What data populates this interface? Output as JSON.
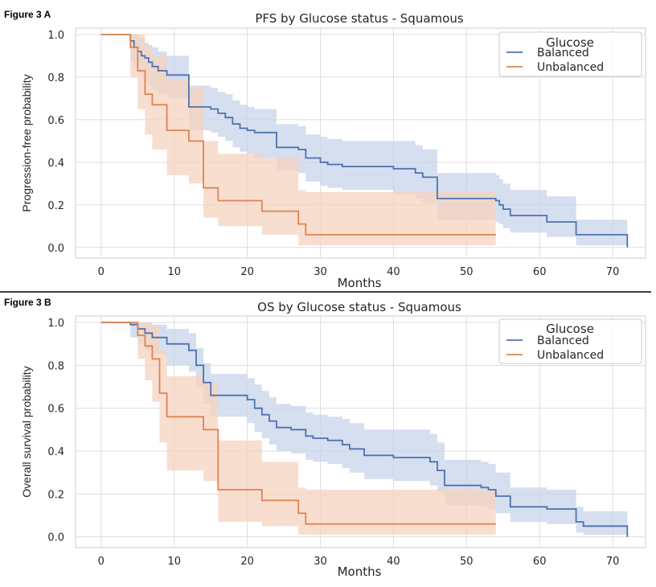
{
  "chart_data": [
    {
      "type": "line",
      "figure_label": "Figure 3 A",
      "title": "PFS by Glucose status - Squamous",
      "xlabel": "Months",
      "ylabel": "Progression-free probability",
      "xlim": [
        -3.5,
        74.5
      ],
      "ylim": [
        -0.05,
        1.03
      ],
      "xticks": [
        0,
        10,
        20,
        30,
        40,
        50,
        60,
        70
      ],
      "xtick_labels": [
        "0",
        "10",
        "20",
        "30",
        "40",
        "50",
        "60",
        "70"
      ],
      "yticks": [
        0.0,
        0.2,
        0.4,
        0.6,
        0.8,
        1.0
      ],
      "ytick_labels": [
        "0.0",
        "0.2",
        "0.4",
        "0.6",
        "0.8",
        "1.0"
      ],
      "grid": true,
      "legend": {
        "title": "Glucose",
        "position": "top-right"
      },
      "series": [
        {
          "name": "Balanced",
          "color": "#4c72b0",
          "band": "#c8d4ea",
          "x": [
            0,
            4,
            4.5,
            5,
            5.5,
            6,
            6.5,
            7,
            7.8,
            9,
            10.5,
            12,
            14,
            15,
            16,
            17,
            18,
            19,
            20,
            21,
            23,
            24,
            26,
            27,
            28,
            30,
            31,
            33,
            36,
            40,
            43,
            44,
            46,
            47,
            54,
            54.5,
            55,
            56,
            58,
            61,
            65,
            72
          ],
          "y": [
            1.0,
            0.97,
            0.94,
            0.92,
            0.9,
            0.89,
            0.87,
            0.85,
            0.83,
            0.81,
            0.81,
            0.66,
            0.66,
            0.65,
            0.63,
            0.61,
            0.58,
            0.56,
            0.55,
            0.54,
            0.54,
            0.47,
            0.47,
            0.46,
            0.42,
            0.4,
            0.39,
            0.38,
            0.38,
            0.37,
            0.35,
            0.33,
            0.23,
            0.23,
            0.22,
            0.2,
            0.18,
            0.15,
            0.15,
            0.12,
            0.06,
            0.0
          ],
          "upper": [
            1.0,
            1.0,
            1.0,
            0.99,
            0.98,
            0.96,
            0.95,
            0.94,
            0.92,
            0.9,
            0.9,
            0.76,
            0.76,
            0.75,
            0.73,
            0.72,
            0.69,
            0.67,
            0.66,
            0.65,
            0.65,
            0.58,
            0.58,
            0.57,
            0.53,
            0.52,
            0.51,
            0.5,
            0.5,
            0.5,
            0.48,
            0.46,
            0.35,
            0.35,
            0.34,
            0.32,
            0.3,
            0.27,
            0.27,
            0.24,
            0.13,
            0.13
          ],
          "lower": [
            1.0,
            0.87,
            0.85,
            0.82,
            0.8,
            0.78,
            0.76,
            0.74,
            0.72,
            0.7,
            0.7,
            0.55,
            0.55,
            0.54,
            0.52,
            0.5,
            0.47,
            0.45,
            0.44,
            0.42,
            0.42,
            0.36,
            0.36,
            0.35,
            0.31,
            0.29,
            0.28,
            0.27,
            0.27,
            0.25,
            0.23,
            0.21,
            0.13,
            0.13,
            0.12,
            0.11,
            0.09,
            0.07,
            0.07,
            0.05,
            0.01,
            0.0
          ]
        },
        {
          "name": "Unbalanced",
          "color": "#dd8452",
          "band": "#f5d3bf",
          "x": [
            0,
            4,
            5,
            6,
            7,
            9,
            12,
            14,
            16,
            22,
            27,
            28,
            54
          ],
          "y": [
            1.0,
            0.94,
            0.83,
            0.72,
            0.67,
            0.55,
            0.5,
            0.28,
            0.22,
            0.17,
            0.11,
            0.06,
            0.06
          ],
          "upper": [
            1.0,
            1.0,
            1.0,
            0.95,
            0.9,
            0.79,
            0.75,
            0.5,
            0.44,
            0.42,
            0.27,
            0.26,
            0.26
          ],
          "lower": [
            1.0,
            0.8,
            0.65,
            0.53,
            0.46,
            0.34,
            0.3,
            0.14,
            0.1,
            0.06,
            0.01,
            0.01,
            0.01
          ]
        }
      ]
    },
    {
      "type": "line",
      "figure_label": "Figure 3 B",
      "title": "OS by Glucose status - Squamous",
      "xlabel": "Months",
      "ylabel": "Overall survival probability",
      "xlim": [
        -3.5,
        74.5
      ],
      "ylim": [
        -0.05,
        1.03
      ],
      "xticks": [
        0,
        10,
        20,
        30,
        40,
        50,
        60,
        70
      ],
      "xtick_labels": [
        "0",
        "10",
        "20",
        "30",
        "40",
        "50",
        "60",
        "70"
      ],
      "yticks": [
        0.0,
        0.2,
        0.4,
        0.6,
        0.8,
        1.0
      ],
      "ytick_labels": [
        "0.0",
        "0.2",
        "0.4",
        "0.6",
        "0.8",
        "1.0"
      ],
      "grid": true,
      "legend": {
        "title": "Glucose",
        "position": "top-right"
      },
      "series": [
        {
          "name": "Balanced",
          "color": "#4c72b0",
          "band": "#c8d4ea",
          "x": [
            0,
            4,
            5,
            6,
            7,
            9,
            12,
            13,
            14,
            15,
            19,
            20,
            21,
            22,
            23,
            24,
            26,
            28,
            29,
            31,
            33,
            34,
            36,
            38,
            40,
            44,
            45,
            46,
            47,
            50,
            52,
            53,
            54,
            56,
            58,
            61,
            65,
            66,
            67,
            72
          ],
          "y": [
            1.0,
            0.99,
            0.97,
            0.95,
            0.93,
            0.9,
            0.87,
            0.8,
            0.72,
            0.66,
            0.66,
            0.64,
            0.6,
            0.57,
            0.54,
            0.51,
            0.5,
            0.47,
            0.46,
            0.45,
            0.43,
            0.41,
            0.38,
            0.38,
            0.37,
            0.37,
            0.35,
            0.31,
            0.24,
            0.24,
            0.23,
            0.22,
            0.19,
            0.14,
            0.14,
            0.13,
            0.07,
            0.05,
            0.05,
            0.0
          ],
          "upper": [
            1.0,
            1.0,
            1.0,
            1.0,
            0.99,
            0.97,
            0.95,
            0.88,
            0.81,
            0.76,
            0.76,
            0.74,
            0.71,
            0.68,
            0.65,
            0.62,
            0.61,
            0.58,
            0.57,
            0.56,
            0.55,
            0.53,
            0.5,
            0.5,
            0.5,
            0.5,
            0.48,
            0.44,
            0.36,
            0.36,
            0.35,
            0.34,
            0.3,
            0.23,
            0.23,
            0.22,
            0.14,
            0.12,
            0.12,
            0.12
          ],
          "lower": [
            1.0,
            0.93,
            0.9,
            0.87,
            0.85,
            0.8,
            0.77,
            0.7,
            0.62,
            0.56,
            0.56,
            0.53,
            0.49,
            0.46,
            0.43,
            0.4,
            0.39,
            0.36,
            0.35,
            0.34,
            0.32,
            0.3,
            0.27,
            0.27,
            0.26,
            0.26,
            0.24,
            0.21,
            0.15,
            0.15,
            0.14,
            0.13,
            0.11,
            0.07,
            0.07,
            0.06,
            0.02,
            0.01,
            0.01,
            0.0
          ]
        },
        {
          "name": "Unbalanced",
          "color": "#dd8452",
          "band": "#f5d3bf",
          "x": [
            0,
            5,
            6,
            7,
            8,
            9,
            12,
            14,
            16,
            22,
            27,
            28,
            54
          ],
          "y": [
            1.0,
            0.94,
            0.89,
            0.83,
            0.67,
            0.56,
            0.56,
            0.5,
            0.22,
            0.17,
            0.11,
            0.06,
            0.06
          ],
          "upper": [
            1.0,
            1.0,
            1.0,
            0.98,
            0.87,
            0.75,
            0.75,
            0.72,
            0.45,
            0.35,
            0.23,
            0.22,
            0.22
          ],
          "lower": [
            1.0,
            0.83,
            0.73,
            0.63,
            0.44,
            0.31,
            0.31,
            0.26,
            0.07,
            0.05,
            0.01,
            0.01,
            0.01
          ]
        }
      ]
    }
  ]
}
